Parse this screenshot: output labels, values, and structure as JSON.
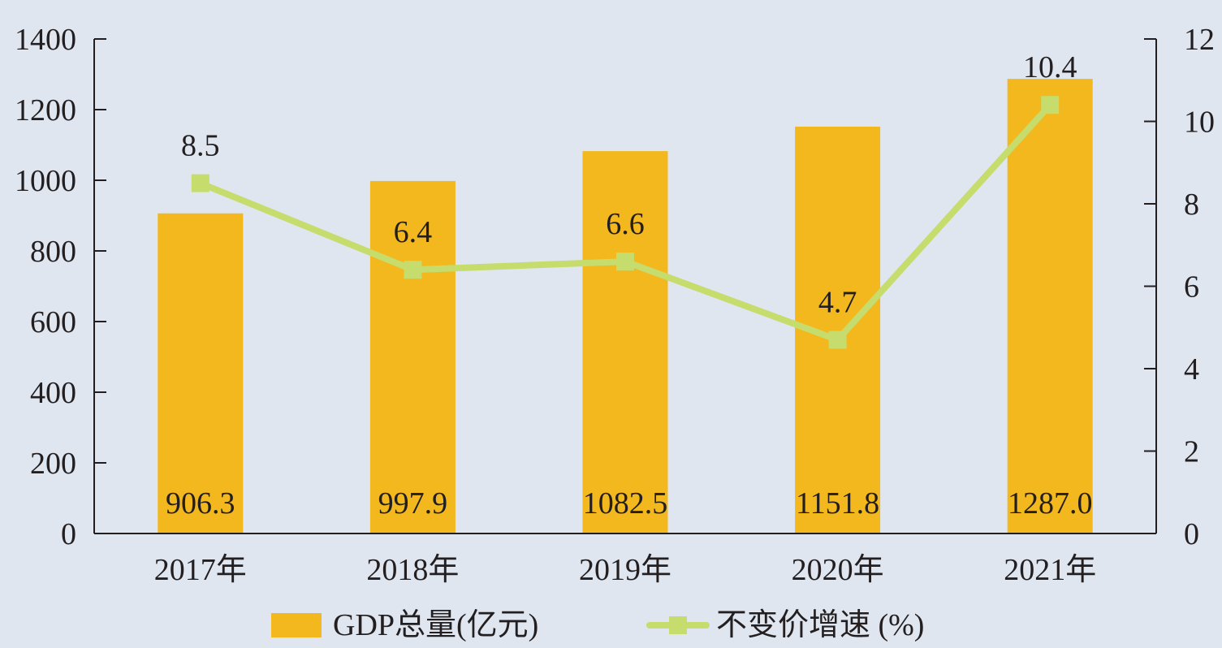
{
  "chart_data": {
    "type": "bar",
    "categories": [
      "2017年",
      "2018年",
      "2019年",
      "2020年",
      "2021年"
    ],
    "series": [
      {
        "name": "GDP总量(亿元)",
        "type": "bar",
        "axis": "left",
        "values": [
          906.3,
          997.9,
          1082.5,
          1151.8,
          1287.0
        ],
        "labels": [
          "906.3",
          "997.9",
          "1082.5",
          "1151.8",
          "1287.0"
        ],
        "color": "#f2b81e"
      },
      {
        "name": "不变价增速 (%)",
        "type": "line",
        "axis": "right",
        "values": [
          8.5,
          6.4,
          6.6,
          4.7,
          10.4
        ],
        "labels": [
          "8.5",
          "6.4",
          "6.6",
          "4.7",
          "10.4"
        ],
        "color": "#c6dc6c"
      }
    ],
    "y_left": {
      "range": [
        0,
        1400
      ],
      "ticks": [
        0,
        200,
        400,
        600,
        800,
        1000,
        1200,
        1400
      ]
    },
    "y_right": {
      "range": [
        0,
        12
      ],
      "ticks": [
        0,
        2,
        4,
        6,
        8,
        10,
        12
      ]
    },
    "title": "",
    "xlabel": "",
    "ylabel": "",
    "grid": false,
    "legend_position": "bottom-center",
    "background_color": "#dfe6f0",
    "axis_color": "#231f20"
  }
}
